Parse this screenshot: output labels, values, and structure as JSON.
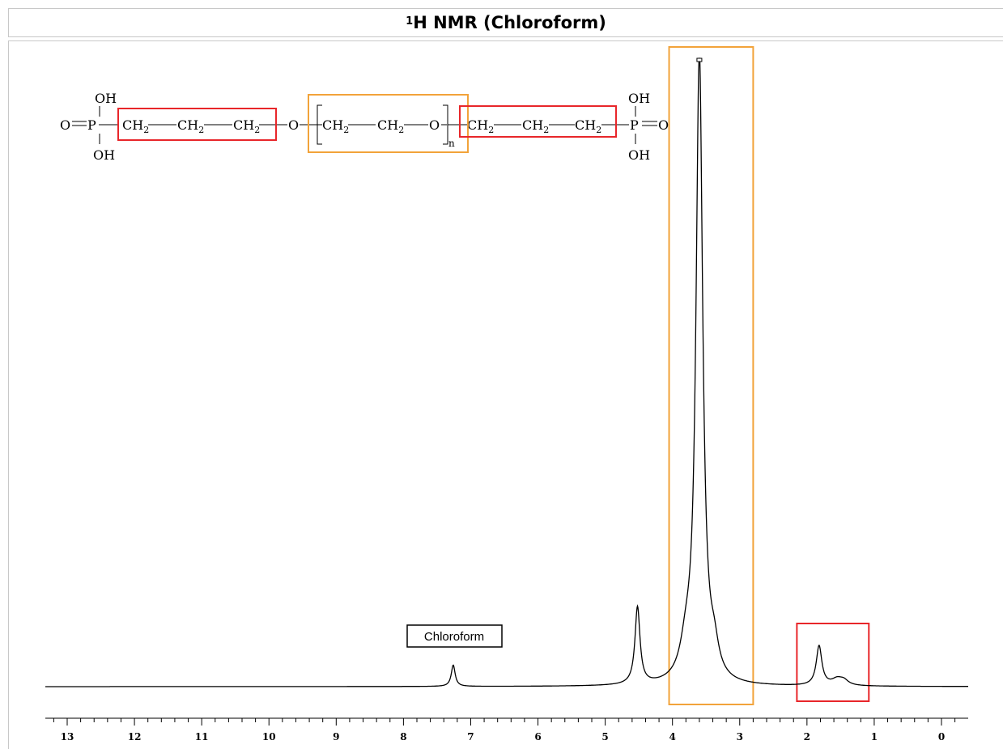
{
  "header": {
    "title_sup": "1",
    "title_main": "H NMR (Chloroform)"
  },
  "structure": {
    "oh_top_left": "OH",
    "oh_bottom_left": "OH",
    "o_left": "O",
    "p_left": "P",
    "ch2_a": "CH",
    "ch2_b": "CH",
    "ch2_c": "CH",
    "o_link1": "O",
    "ch2_d": "CH",
    "ch2_e": "CH",
    "o_repeat": "O",
    "repeat_n": "n",
    "ch2_f": "CH",
    "ch2_g": "CH",
    "ch2_h": "CH",
    "p_right": "P",
    "o_right": "O",
    "oh_top_right": "OH",
    "oh_bottom_right": "OH",
    "subscript": "2"
  },
  "colors": {
    "highlight_red": "#e8262a",
    "highlight_orange": "#f2a33a",
    "spectrum": "#000000"
  },
  "chart_data": {
    "type": "line",
    "title": "1H NMR (Chloroform)",
    "xlabel": "",
    "ylabel": "",
    "x_axis": "chemical shift (ppm), reversed",
    "xlim": [
      13.3,
      -0.4
    ],
    "ylim": [
      0,
      100
    ],
    "grid": false,
    "tick_labels": [
      "13",
      "12",
      "11",
      "10",
      "9",
      "8",
      "7",
      "6",
      "5",
      "4",
      "3",
      "2",
      "1",
      "0"
    ],
    "ticks": [
      13,
      12,
      11,
      10,
      9,
      8,
      7,
      6,
      5,
      4,
      3,
      2,
      1,
      0
    ],
    "baseline": 0,
    "peaks": [
      {
        "shift": 7.26,
        "height": 3.4,
        "width": 0.035
      },
      {
        "shift": 4.52,
        "height": 12.3,
        "width": 0.045
      },
      {
        "shift": 3.6,
        "height": 100,
        "width": 0.06
      },
      {
        "shift": 3.8,
        "height": 4.5,
        "width": 0.1
      },
      {
        "shift": 3.38,
        "height": 4.0,
        "width": 0.08
      },
      {
        "shift": 1.82,
        "height": 6.3,
        "width": 0.05
      },
      {
        "shift": 1.55,
        "height": 1.0,
        "width": 0.1
      },
      {
        "shift": 1.45,
        "height": 0.7,
        "width": 0.08
      }
    ],
    "annotations": [
      {
        "text": "Chloroform",
        "shift": 7.26
      }
    ],
    "highlight_regions": [
      {
        "color": "orange",
        "from": 4.05,
        "to": 2.8
      },
      {
        "color": "red",
        "from": 2.15,
        "to": 1.08
      }
    ]
  }
}
